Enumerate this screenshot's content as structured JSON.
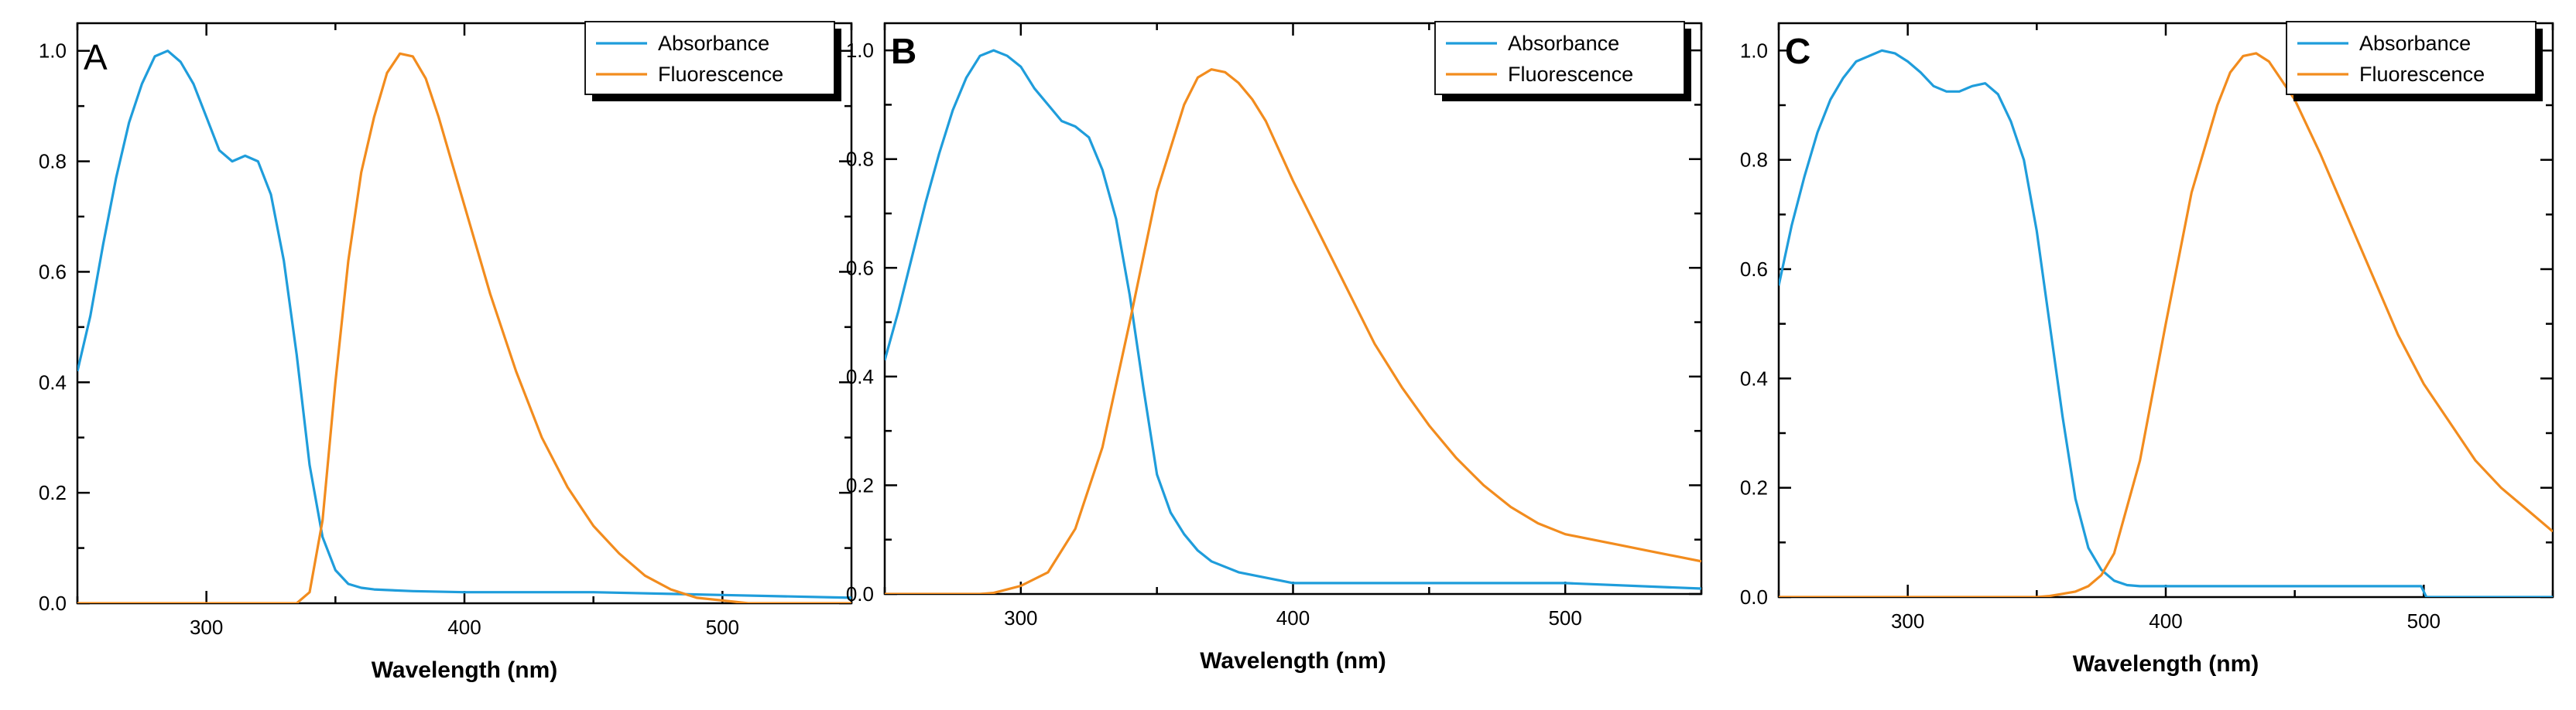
{
  "colors": {
    "absorbance": "#1f9ddb",
    "fluorescence": "#f28c1e",
    "axis": "#000000",
    "legend_shadow": "#000000"
  },
  "chart_data": [
    {
      "type": "line",
      "panel_label": "A",
      "xlabel": "Wavelength (nm)",
      "ylabel": "",
      "xlim": [
        250,
        550
      ],
      "ylim": [
        0,
        1.05
      ],
      "xticks": [
        300,
        400,
        500
      ],
      "yticks": [
        0.0,
        0.2,
        0.4,
        0.6,
        0.8,
        1.0
      ],
      "xtick_labels": [
        "300",
        "400",
        "500"
      ],
      "ytick_labels": [
        "0.0",
        "0.2",
        "0.4",
        "0.6",
        "0.8",
        "1.0"
      ],
      "legend": [
        "Absorbance",
        "Fluorescence"
      ],
      "legend_position": "top-right",
      "series": [
        {
          "name": "Absorbance",
          "color": "#1f9ddb",
          "x": [
            250,
            255,
            260,
            265,
            270,
            275,
            280,
            285,
            290,
            295,
            300,
            305,
            310,
            315,
            320,
            325,
            330,
            335,
            340,
            345,
            350,
            355,
            360,
            365,
            370,
            380,
            400,
            450,
            500,
            550
          ],
          "y": [
            0.42,
            0.52,
            0.65,
            0.77,
            0.87,
            0.94,
            0.99,
            1.0,
            0.98,
            0.94,
            0.88,
            0.82,
            0.8,
            0.81,
            0.8,
            0.74,
            0.62,
            0.45,
            0.25,
            0.12,
            0.06,
            0.035,
            0.028,
            0.025,
            0.024,
            0.022,
            0.02,
            0.02,
            0.015,
            0.01
          ]
        },
        {
          "name": "Fluorescence",
          "color": "#f28c1e",
          "x": [
            250,
            300,
            335,
            340,
            345,
            350,
            355,
            360,
            365,
            370,
            375,
            380,
            385,
            390,
            395,
            400,
            410,
            420,
            430,
            440,
            450,
            460,
            470,
            480,
            490,
            500,
            510,
            520,
            550
          ],
          "y": [
            0,
            0,
            0,
            0.02,
            0.15,
            0.4,
            0.62,
            0.78,
            0.88,
            0.96,
            0.995,
            0.99,
            0.95,
            0.88,
            0.8,
            0.72,
            0.56,
            0.42,
            0.3,
            0.21,
            0.14,
            0.09,
            0.05,
            0.025,
            0.01,
            0.005,
            0,
            0,
            0
          ]
        }
      ]
    },
    {
      "type": "line",
      "panel_label": "B",
      "xlabel": "Wavelength (nm)",
      "ylabel": "",
      "xlim": [
        250,
        550
      ],
      "ylim": [
        0,
        1.05
      ],
      "xticks": [
        300,
        400,
        500
      ],
      "yticks": [
        0.0,
        0.2,
        0.4,
        0.6,
        0.8,
        1.0
      ],
      "xtick_labels": [
        "300",
        "400",
        "500"
      ],
      "ytick_labels": [
        "0.0",
        "0.2",
        "0.4",
        "0.6",
        "0.8",
        "1.0"
      ],
      "legend": [
        "Absorbance",
        "Fluorescence"
      ],
      "legend_position": "top-right",
      "series": [
        {
          "name": "Absorbance",
          "color": "#1f9ddb",
          "x": [
            250,
            255,
            260,
            265,
            270,
            275,
            280,
            285,
            290,
            295,
            300,
            305,
            310,
            315,
            320,
            325,
            330,
            335,
            340,
            345,
            350,
            355,
            360,
            365,
            370,
            380,
            390,
            400,
            450,
            500,
            550
          ],
          "y": [
            0.43,
            0.52,
            0.62,
            0.72,
            0.81,
            0.89,
            0.95,
            0.99,
            1.0,
            0.99,
            0.97,
            0.93,
            0.9,
            0.87,
            0.86,
            0.84,
            0.78,
            0.69,
            0.55,
            0.38,
            0.22,
            0.15,
            0.11,
            0.08,
            0.06,
            0.04,
            0.03,
            0.02,
            0.02,
            0.02,
            0.01
          ]
        },
        {
          "name": "Fluorescence",
          "color": "#f28c1e",
          "x": [
            250,
            285,
            290,
            300,
            310,
            320,
            330,
            340,
            350,
            360,
            365,
            370,
            375,
            380,
            385,
            390,
            400,
            410,
            420,
            430,
            440,
            450,
            460,
            470,
            480,
            490,
            500,
            510,
            520,
            530,
            550
          ],
          "y": [
            0,
            0,
            0.002,
            0.015,
            0.04,
            0.12,
            0.27,
            0.5,
            0.74,
            0.9,
            0.95,
            0.965,
            0.96,
            0.94,
            0.91,
            0.87,
            0.76,
            0.66,
            0.56,
            0.46,
            0.38,
            0.31,
            0.25,
            0.2,
            0.16,
            0.13,
            0.11,
            0.1,
            0.09,
            0.08,
            0.06
          ]
        }
      ]
    },
    {
      "type": "line",
      "panel_label": "C",
      "xlabel": "Wavelength (nm)",
      "ylabel": "",
      "xlim": [
        250,
        550
      ],
      "ylim": [
        0,
        1.05
      ],
      "xticks": [
        300,
        400,
        500
      ],
      "yticks": [
        0.0,
        0.2,
        0.4,
        0.6,
        0.8,
        1.0
      ],
      "xtick_labels": [
        "300",
        "400",
        "500"
      ],
      "ytick_labels": [
        "0.0",
        "0.2",
        "0.4",
        "0.6",
        "0.8",
        "1.0"
      ],
      "legend": [
        "Absorbance",
        "Fluorescence"
      ],
      "legend_position": "top-right",
      "series": [
        {
          "name": "Absorbance",
          "color": "#1f9ddb",
          "x": [
            250,
            255,
            260,
            265,
            270,
            275,
            280,
            285,
            290,
            295,
            300,
            305,
            310,
            315,
            320,
            325,
            330,
            335,
            340,
            345,
            350,
            355,
            360,
            365,
            370,
            375,
            380,
            385,
            390,
            400,
            450,
            499,
            501,
            550
          ],
          "y": [
            0.57,
            0.68,
            0.77,
            0.85,
            0.91,
            0.95,
            0.98,
            0.99,
            1.0,
            0.995,
            0.98,
            0.96,
            0.935,
            0.925,
            0.925,
            0.935,
            0.94,
            0.92,
            0.87,
            0.8,
            0.67,
            0.5,
            0.33,
            0.18,
            0.09,
            0.05,
            0.03,
            0.022,
            0.02,
            0.02,
            0.02,
            0.02,
            0,
            0
          ]
        },
        {
          "name": "Fluorescence",
          "color": "#f28c1e",
          "x": [
            250,
            350,
            355,
            360,
            365,
            370,
            375,
            380,
            390,
            400,
            410,
            420,
            425,
            430,
            435,
            440,
            450,
            460,
            470,
            480,
            490,
            500,
            510,
            520,
            530,
            540,
            550
          ],
          "y": [
            0,
            0,
            0.002,
            0.006,
            0.01,
            0.02,
            0.04,
            0.08,
            0.25,
            0.5,
            0.74,
            0.9,
            0.96,
            0.99,
            0.995,
            0.98,
            0.91,
            0.81,
            0.7,
            0.59,
            0.48,
            0.39,
            0.32,
            0.25,
            0.2,
            0.16,
            0.12
          ]
        }
      ]
    }
  ]
}
